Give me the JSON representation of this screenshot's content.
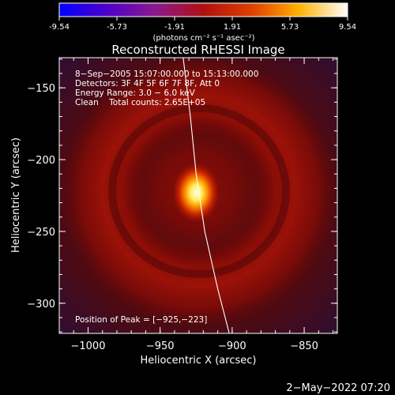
{
  "chart_data": {
    "type": "heatmap",
    "title": "Reconstructed RHESSI Image",
    "xlabel": "Heliocentric X (arcsec)",
    "ylabel": "Heliocentric Y (arcsec)",
    "colorbar": {
      "ticks": [
        "-9.54",
        "-5.73",
        "-1.91",
        "1.91",
        "5.73",
        "9.54"
      ],
      "unit_label": "(photons cm⁻² s⁻¹ asec⁻²)",
      "range": [
        -9.54,
        9.54
      ]
    },
    "xlim": [
      -1020,
      -827
    ],
    "ylim": [
      -321,
      -129
    ],
    "x_ticks": [
      {
        "value": -1000,
        "label": "−1000"
      },
      {
        "value": -950,
        "label": "−950"
      },
      {
        "value": -900,
        "label": "−900"
      },
      {
        "value": -850,
        "label": "−850"
      }
    ],
    "y_ticks": [
      {
        "value": -150,
        "label": "−150"
      },
      {
        "value": -200,
        "label": "−200"
      },
      {
        "value": -250,
        "label": "−250"
      },
      {
        "value": -300,
        "label": "−300"
      }
    ],
    "annotations": {
      "time_range": "8−Sep−2005 15:07:00.000 to 15:13:00.000",
      "detectors": "Detectors: 3F 4F 5F 6F 7F 8F, Att 0",
      "energy": "Energy Range: 3.0 − 6.0 keV",
      "clean": "Clean    Total counts: 2.65E+05",
      "peak": "Position of Peak = [−925,−223]"
    },
    "peak": {
      "x": -925,
      "y": -223
    },
    "limb_curve": [
      {
        "x": -934,
        "y": -129
      },
      {
        "x": -929,
        "y": -170
      },
      {
        "x": -925,
        "y": -210
      },
      {
        "x": -919,
        "y": -250
      },
      {
        "x": -910,
        "y": -290
      },
      {
        "x": -902,
        "y": -321
      }
    ],
    "colors": {
      "background": "#000000",
      "axes": "#ffffff",
      "map_low": "#3b1640",
      "map_mid": "#8a0e08",
      "map_high": "#ffffe0"
    }
  },
  "footer": {
    "date": "2−May−2022 07:20"
  }
}
